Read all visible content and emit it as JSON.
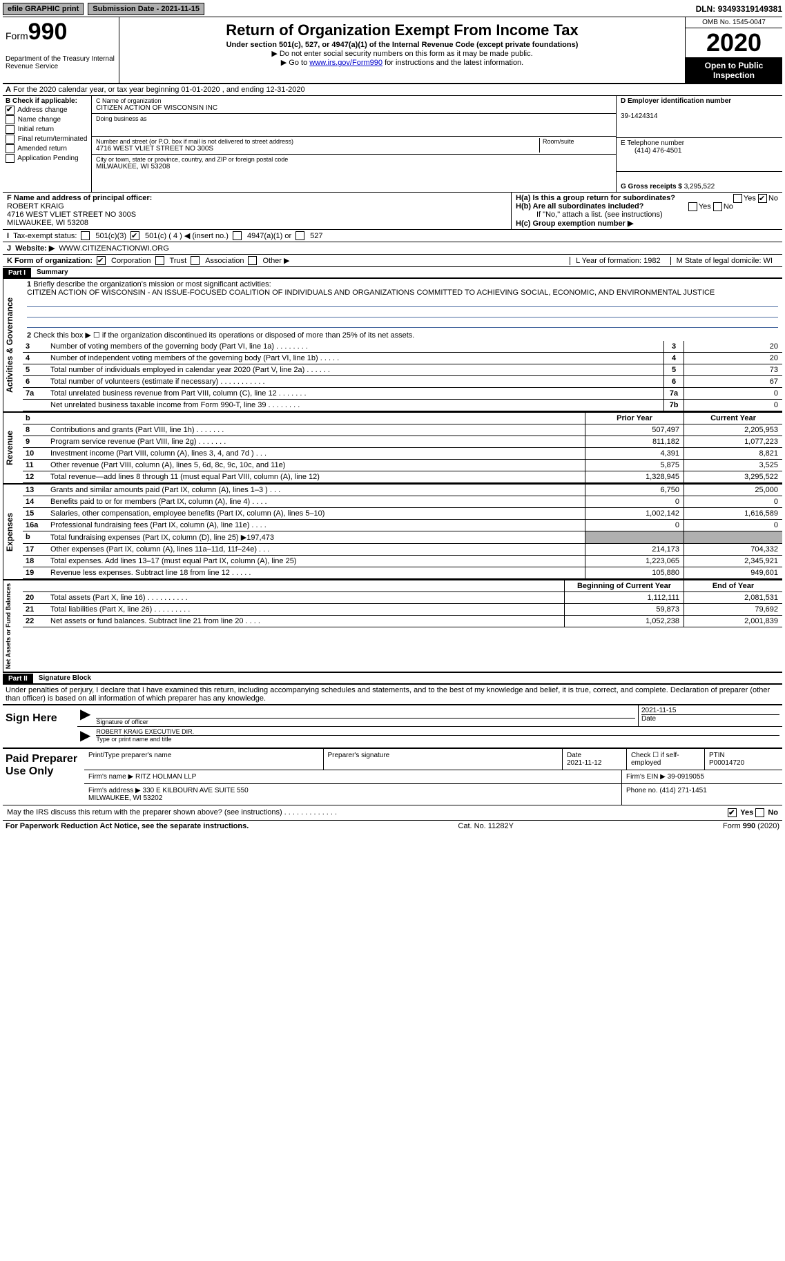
{
  "topbar": {
    "efile": "efile GRAPHIC print",
    "submission_label": "Submission Date - ",
    "submission_date": "2021-11-15",
    "dln_label": "DLN: ",
    "dln": "93493319149381"
  },
  "header": {
    "form_prefix": "Form",
    "form_number": "990",
    "dept": "Department of the Treasury Internal Revenue Service",
    "title": "Return of Organization Exempt From Income Tax",
    "subtitle": "Under section 501(c), 527, or 4947(a)(1) of the Internal Revenue Code (except private foundations)",
    "note1": "▶ Do not enter social security numbers on this form as it may be made public.",
    "note2_pre": "▶ Go to ",
    "note2_link": "www.irs.gov/Form990",
    "note2_post": " for instructions and the latest information.",
    "omb": "OMB No. 1545-0047",
    "year": "2020",
    "open": "Open to Public Inspection"
  },
  "rowA": {
    "text": "For the 2020 calendar year, or tax year beginning 01-01-2020   , and ending 12-31-2020"
  },
  "B": {
    "label": "B Check if applicable:",
    "opts": [
      "Address change",
      "Name change",
      "Initial return",
      "Final return/terminated",
      "Amended return",
      "Application Pending"
    ],
    "checked_idx": 0
  },
  "C": {
    "name_lbl": "C Name of organization",
    "name": "CITIZEN ACTION OF WISCONSIN INC",
    "dba_lbl": "Doing business as",
    "dba": "",
    "street_lbl": "Number and street (or P.O. box if mail is not delivered to street address)",
    "street": "4716 WEST VLIET STREET NO 300S",
    "room_lbl": "Room/suite",
    "city_lbl": "City or town, state or province, country, and ZIP or foreign postal code",
    "city": "MILWAUKEE, WI  53208"
  },
  "D": {
    "ein_lbl": "D Employer identification number",
    "ein": "39-1424314"
  },
  "E": {
    "tel_lbl": "E Telephone number",
    "tel": "(414) 476-4501"
  },
  "G": {
    "gross_lbl": "G Gross receipts $ ",
    "gross": "3,295,522"
  },
  "F": {
    "lbl": "F  Name and address of principal officer:",
    "name": "ROBERT KRAIG",
    "addr1": "4716 WEST VLIET STREET NO 300S",
    "addr2": "MILWAUKEE, WI  53208"
  },
  "H": {
    "a": "H(a)  Is this a group return for subordinates?",
    "a_yes": "Yes",
    "a_no": "No",
    "b": "H(b)  Are all subordinates included?",
    "b_note": "If \"No,\" attach a list. (see instructions)",
    "c": "H(c)  Group exemption number ▶"
  },
  "I": {
    "lbl": "Tax-exempt status:",
    "opts": [
      "501(c)(3)",
      "501(c) ( 4 ) ◀ (insert no.)",
      "4947(a)(1) or",
      "527"
    ]
  },
  "J": {
    "lbl": "Website: ▶",
    "val": "WWW.CITIZENACTIONWI.ORG"
  },
  "K": {
    "lbl": "K Form of organization:",
    "opts": [
      "Corporation",
      "Trust",
      "Association",
      "Other ▶"
    ],
    "L": "L Year of formation: 1982",
    "M": "M State of legal domicile: WI"
  },
  "partI": {
    "hdr": "Part I",
    "title": "Summary",
    "q1": "Briefly describe the organization's mission or most significant activities:",
    "mission": "CITIZEN ACTION OF WISCONSIN - AN ISSUE-FOCUSED COALITION OF INDIVIDUALS AND ORGANIZATIONS COMMITTED TO ACHIEVING SOCIAL, ECONOMIC, AND ENVIRONMENTAL JUSTICE",
    "q2": "Check this box ▶ ☐  if the organization discontinued its operations or disposed of more than 25% of its net assets.",
    "lines_gov": [
      {
        "n": "3",
        "d": "Number of voting members of the governing body (Part VI, line 1a)  .    .    .    .    .    .    .    .",
        "b": "3",
        "v": "20"
      },
      {
        "n": "4",
        "d": "Number of independent voting members of the governing body (Part VI, line 1b)  .    .    .    .    .",
        "b": "4",
        "v": "20"
      },
      {
        "n": "5",
        "d": "Total number of individuals employed in calendar year 2020 (Part V, line 2a)  .    .    .    .    .    .",
        "b": "5",
        "v": "73"
      },
      {
        "n": "6",
        "d": "Total number of volunteers (estimate if necessary)  .    .    .    .    .    .    .    .    .    .    .",
        "b": "6",
        "v": "67"
      },
      {
        "n": "7a",
        "d": "Total unrelated business revenue from Part VIII, column (C), line 12  .    .    .    .    .    .    .",
        "b": "7a",
        "v": "0"
      },
      {
        "n": "",
        "d": "Net unrelated business taxable income from Form 990-T, line 39  .    .    .    .    .    .    .    .",
        "b": "7b",
        "v": "0"
      }
    ],
    "col_hdr_prior": "Prior Year",
    "col_hdr_curr": "Current Year",
    "rev": [
      {
        "n": "8",
        "d": "Contributions and grants (Part VIII, line 1h)  .    .    .    .    .    .    .",
        "p": "507,497",
        "c": "2,205,953"
      },
      {
        "n": "9",
        "d": "Program service revenue (Part VIII, line 2g)  .    .    .    .    .    .    .",
        "p": "811,182",
        "c": "1,077,223"
      },
      {
        "n": "10",
        "d": "Investment income (Part VIII, column (A), lines 3, 4, and 7d )  .    .    .",
        "p": "4,391",
        "c": "8,821"
      },
      {
        "n": "11",
        "d": "Other revenue (Part VIII, column (A), lines 5, 6d, 8c, 9c, 10c, and 11e)",
        "p": "5,875",
        "c": "3,525"
      },
      {
        "n": "12",
        "d": "Total revenue—add lines 8 through 11 (must equal Part VIII, column (A), line 12)",
        "p": "1,328,945",
        "c": "3,295,522"
      }
    ],
    "exp": [
      {
        "n": "13",
        "d": "Grants and similar amounts paid (Part IX, column (A), lines 1–3 )  .    .    .",
        "p": "6,750",
        "c": "25,000"
      },
      {
        "n": "14",
        "d": "Benefits paid to or for members (Part IX, column (A), line 4)  .    .    .    .",
        "p": "0",
        "c": "0"
      },
      {
        "n": "15",
        "d": "Salaries, other compensation, employee benefits (Part IX, column (A), lines 5–10)",
        "p": "1,002,142",
        "c": "1,616,589"
      },
      {
        "n": "16a",
        "d": "Professional fundraising fees (Part IX, column (A), line 11e)  .    .    .    .",
        "p": "0",
        "c": "0"
      },
      {
        "n": "b",
        "d": "Total fundraising expenses (Part IX, column (D), line 25) ▶197,473",
        "p": "",
        "c": "",
        "gray": true
      },
      {
        "n": "17",
        "d": "Other expenses (Part IX, column (A), lines 11a–11d, 11f–24e)  .    .    .",
        "p": "214,173",
        "c": "704,332"
      },
      {
        "n": "18",
        "d": "Total expenses. Add lines 13–17 (must equal Part IX, column (A), line 25)",
        "p": "1,223,065",
        "c": "2,345,921"
      },
      {
        "n": "19",
        "d": "Revenue less expenses. Subtract line 18 from line 12  .    .    .    .    .",
        "p": "105,880",
        "c": "949,601"
      }
    ],
    "col_hdr_beg": "Beginning of Current Year",
    "col_hdr_end": "End of Year",
    "net": [
      {
        "n": "20",
        "d": "Total assets (Part X, line 16)  .    .    .    .    .    .    .    .    .    .",
        "p": "1,112,111",
        "c": "2,081,531"
      },
      {
        "n": "21",
        "d": "Total liabilities (Part X, line 26)  .    .    .    .    .    .    .    .    .",
        "p": "59,873",
        "c": "79,692"
      },
      {
        "n": "22",
        "d": "Net assets or fund balances. Subtract line 21 from line 20  .    .    .    .",
        "p": "1,052,238",
        "c": "2,001,839"
      }
    ]
  },
  "partII": {
    "hdr": "Part II",
    "title": "Signature Block",
    "decl": "Under penalties of perjury, I declare that I have examined this return, including accompanying schedules and statements, and to the best of my knowledge and belief, it is true, correct, and complete. Declaration of preparer (other than officer) is based on all information of which preparer has any knowledge."
  },
  "sign": {
    "here": "Sign Here",
    "sig_lbl": "Signature of officer",
    "date_lbl": "Date",
    "date": "2021-11-15",
    "name": "ROBERT KRAIG  EXECUTIVE DIR.",
    "name_lbl": "Type or print name and title"
  },
  "paid": {
    "title": "Paid Preparer Use Only",
    "h1": "Print/Type preparer's name",
    "h2": "Preparer's signature",
    "h3": "Date",
    "date": "2021-11-12",
    "h4": "Check ☐ if self-employed",
    "h5": "PTIN",
    "ptin": "P00014720",
    "firm_name_lbl": "Firm's name    ▶ ",
    "firm_name": "RITZ HOLMAN LLP",
    "firm_ein_lbl": "Firm's EIN ▶ ",
    "firm_ein": "39-0919055",
    "firm_addr_lbl": "Firm's address ▶ ",
    "firm_addr": "330 E KILBOURN AVE SUITE 550\n                          MILWAUKEE, WI  53202",
    "phone_lbl": "Phone no. ",
    "phone": "(414) 271-1451"
  },
  "may_irs": {
    "text": "May the IRS discuss this return with the preparer shown above? (see instructions)  .    .    .    .    .    .    .    .    .    .    .    .    .",
    "yes": "Yes",
    "no": "No"
  },
  "footer": {
    "left": "For Paperwork Reduction Act Notice, see the separate instructions.",
    "mid": "Cat. No. 11282Y",
    "right": "Form 990 (2020)"
  },
  "side_labels": {
    "gov": "Activities & Governance",
    "rev": "Revenue",
    "exp": "Expenses",
    "net": "Net Assets or Fund Balances"
  }
}
